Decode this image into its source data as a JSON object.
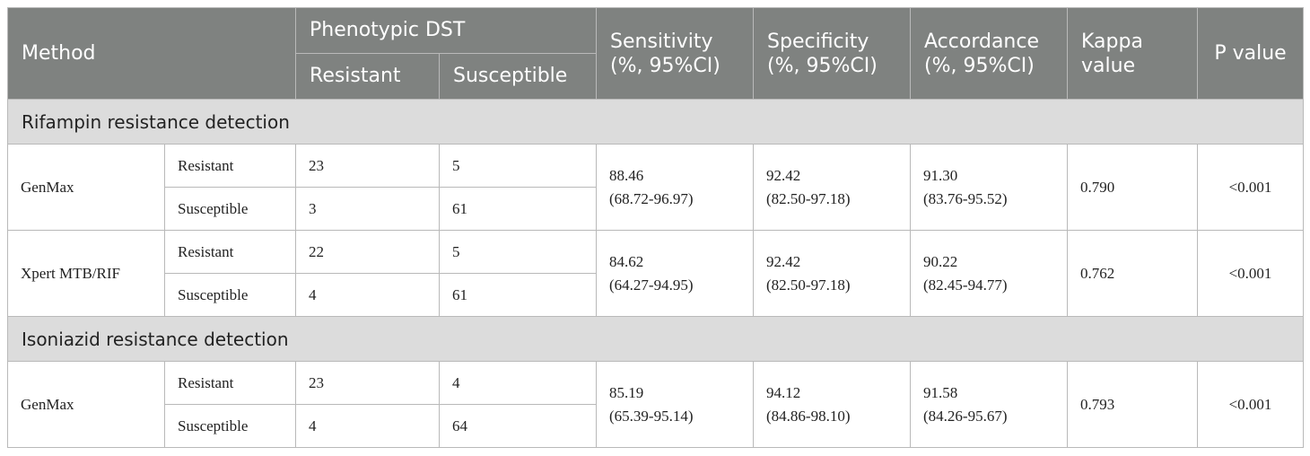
{
  "header": {
    "method": "Method",
    "phenotypic_dst": "Phenotypic DST",
    "resistant": "Resistant",
    "susceptible": "Susceptible",
    "sensitivity_l1": "Sensitivity",
    "sensitivity_l2": "(%, 95%CI)",
    "specificity_l1": "Specificity",
    "specificity_l2": "(%, 95%CI)",
    "accordance_l1": "Accordance",
    "accordance_l2": "(%, 95%CI)",
    "kappa_l1": "Kappa",
    "kappa_l2": "value",
    "p_value": "P value"
  },
  "sections": [
    {
      "title": "Rifampin resistance detection",
      "methods": [
        {
          "name": "GenMax",
          "rows": [
            {
              "label": "Resistant",
              "resistant": "23",
              "susceptible": "5"
            },
            {
              "label": "Susceptible",
              "resistant": "3",
              "susceptible": "61"
            }
          ],
          "sensitivity": "88.46",
          "sensitivity_ci": "(68.72-96.97)",
          "specificity": "92.42",
          "specificity_ci": "(82.50-97.18)",
          "accordance": "91.30",
          "accordance_ci": "(83.76-95.52)",
          "kappa": "0.790",
          "p": "<0.001"
        },
        {
          "name": "Xpert MTB/RIF",
          "rows": [
            {
              "label": "Resistant",
              "resistant": "22",
              "susceptible": "5"
            },
            {
              "label": "Susceptible",
              "resistant": "4",
              "susceptible": "61"
            }
          ],
          "sensitivity": "84.62",
          "sensitivity_ci": "(64.27-94.95)",
          "specificity": "92.42",
          "specificity_ci": "(82.50-97.18)",
          "accordance": "90.22",
          "accordance_ci": "(82.45-94.77)",
          "kappa": "0.762",
          "p": "<0.001"
        }
      ]
    },
    {
      "title": "Isoniazid resistance detection",
      "methods": [
        {
          "name": "GenMax",
          "rows": [
            {
              "label": "Resistant",
              "resistant": "23",
              "susceptible": "4"
            },
            {
              "label": "Susceptible",
              "resistant": "4",
              "susceptible": "64"
            }
          ],
          "sensitivity": "85.19",
          "sensitivity_ci": "(65.39-95.14)",
          "specificity": "94.12",
          "specificity_ci": "(84.86-98.10)",
          "accordance": "91.58",
          "accordance_ci": "(84.26-95.67)",
          "kappa": "0.793",
          "p": "<0.001"
        }
      ]
    }
  ]
}
